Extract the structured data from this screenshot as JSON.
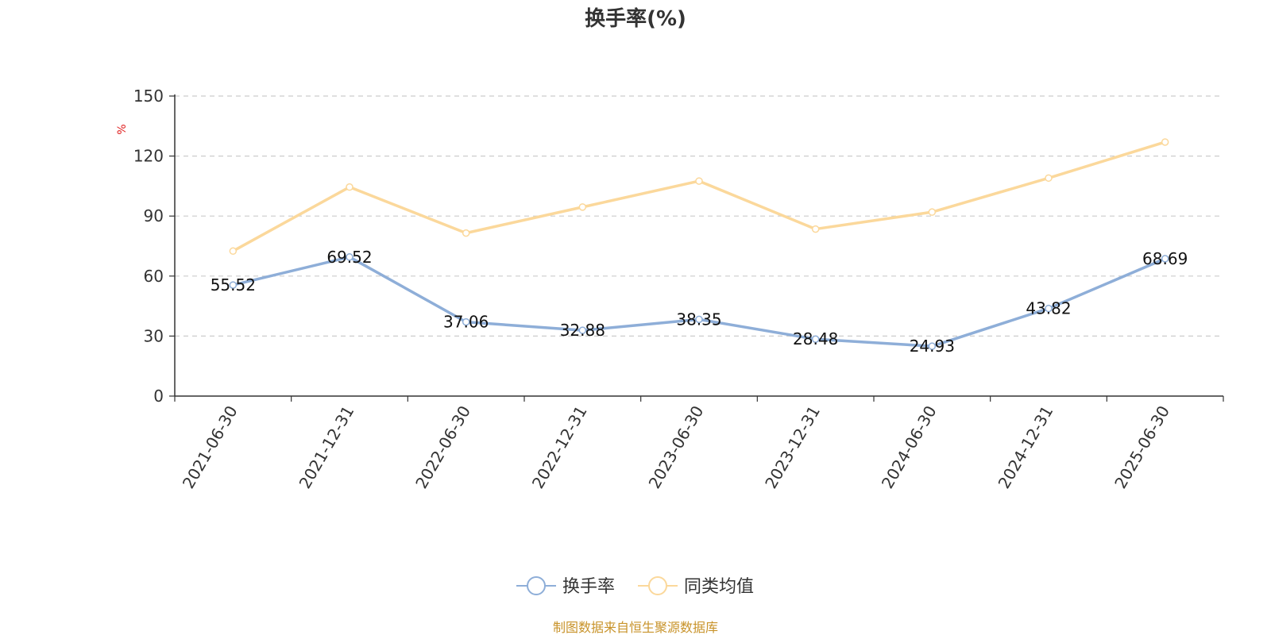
{
  "chart_data": {
    "type": "line",
    "title": "换手率(%)",
    "ylabel": "%",
    "xlabel": "",
    "categories": [
      "2021-06-30",
      "2021-12-31",
      "2022-06-30",
      "2022-12-31",
      "2023-06-30",
      "2023-12-31",
      "2024-06-30",
      "2024-12-31",
      "2025-06-30"
    ],
    "ylim": [
      0,
      150
    ],
    "yticks": [
      0,
      30,
      60,
      90,
      120,
      150
    ],
    "grid": true,
    "legend_position": "bottom",
    "series": [
      {
        "name": "换手率",
        "color": "#8eaed8",
        "show_labels": true,
        "values": [
          55.52,
          69.52,
          37.06,
          32.88,
          38.35,
          28.48,
          24.93,
          43.82,
          68.69
        ],
        "labels": [
          "55.52",
          "69.52",
          "37.06",
          "32.88",
          "38.35",
          "28.48",
          "24.93",
          "43.82",
          "68.69"
        ]
      },
      {
        "name": "同类均值",
        "color": "#fbd89b",
        "show_labels": false,
        "values": [
          72.5,
          104.5,
          81.5,
          94.5,
          107.5,
          83.5,
          92,
          109,
          127
        ]
      }
    ]
  },
  "footer": {
    "source": "制图数据来自恒生聚源数据库"
  },
  "colors": {
    "axis": "#333333",
    "grid": "#cccccc",
    "unit": "#e02020",
    "source": "#c8932a"
  }
}
